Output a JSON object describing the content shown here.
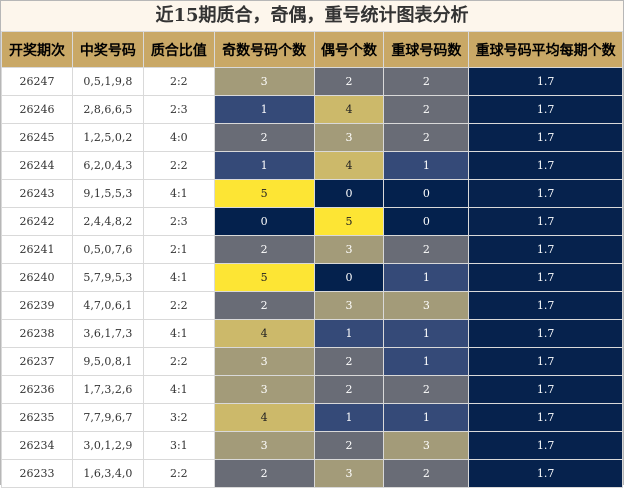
{
  "title": "近15期质合，奇偶，重号统计图表分析",
  "chart_data": {
    "type": "table",
    "title": "近15期质合，奇偶，重号统计图表分析",
    "columns": [
      "开奖期次",
      "中奖号码",
      "质合比值",
      "奇数号码个数",
      "偶号个数",
      "重球号码数",
      "重球号码平均每期个数"
    ],
    "rows": [
      {
        "period": "26247",
        "numbers": "0,5,1,9,8",
        "ratio": "2:2",
        "odd": 3,
        "even": 2,
        "repeat": 2,
        "avg": "1.7"
      },
      {
        "period": "26246",
        "numbers": "2,8,6,6,5",
        "ratio": "2:3",
        "odd": 1,
        "even": 4,
        "repeat": 2,
        "avg": "1.7"
      },
      {
        "period": "26245",
        "numbers": "1,2,5,0,2",
        "ratio": "4:0",
        "odd": 2,
        "even": 3,
        "repeat": 2,
        "avg": "1.7"
      },
      {
        "period": "26244",
        "numbers": "6,2,0,4,3",
        "ratio": "2:2",
        "odd": 1,
        "even": 4,
        "repeat": 1,
        "avg": "1.7"
      },
      {
        "period": "26243",
        "numbers": "9,1,5,5,3",
        "ratio": "4:1",
        "odd": 5,
        "even": 0,
        "repeat": 0,
        "avg": "1.7"
      },
      {
        "period": "26242",
        "numbers": "2,4,4,8,2",
        "ratio": "2:3",
        "odd": 0,
        "even": 5,
        "repeat": 0,
        "avg": "1.7"
      },
      {
        "period": "26241",
        "numbers": "0,5,0,7,6",
        "ratio": "2:1",
        "odd": 2,
        "even": 3,
        "repeat": 2,
        "avg": "1.7"
      },
      {
        "period": "26240",
        "numbers": "5,7,9,5,3",
        "ratio": "4:1",
        "odd": 5,
        "even": 0,
        "repeat": 1,
        "avg": "1.7"
      },
      {
        "period": "26239",
        "numbers": "4,7,0,6,1",
        "ratio": "2:2",
        "odd": 2,
        "even": 3,
        "repeat": 3,
        "avg": "1.7"
      },
      {
        "period": "26238",
        "numbers": "3,6,1,7,3",
        "ratio": "4:1",
        "odd": 4,
        "even": 1,
        "repeat": 1,
        "avg": "1.7"
      },
      {
        "period": "26237",
        "numbers": "9,5,0,8,1",
        "ratio": "2:2",
        "odd": 3,
        "even": 2,
        "repeat": 1,
        "avg": "1.7"
      },
      {
        "period": "26236",
        "numbers": "1,7,3,2,6",
        "ratio": "4:1",
        "odd": 3,
        "even": 2,
        "repeat": 2,
        "avg": "1.7"
      },
      {
        "period": "26235",
        "numbers": "7,7,9,6,7",
        "ratio": "3:2",
        "odd": 4,
        "even": 1,
        "repeat": 1,
        "avg": "1.7"
      },
      {
        "period": "26234",
        "numbers": "3,0,1,2,9",
        "ratio": "3:1",
        "odd": 3,
        "even": 2,
        "repeat": 3,
        "avg": "1.7"
      },
      {
        "period": "26233",
        "numbers": "1,6,3,4,0",
        "ratio": "2:2",
        "odd": 2,
        "even": 3,
        "repeat": 2,
        "avg": "1.7"
      }
    ]
  }
}
